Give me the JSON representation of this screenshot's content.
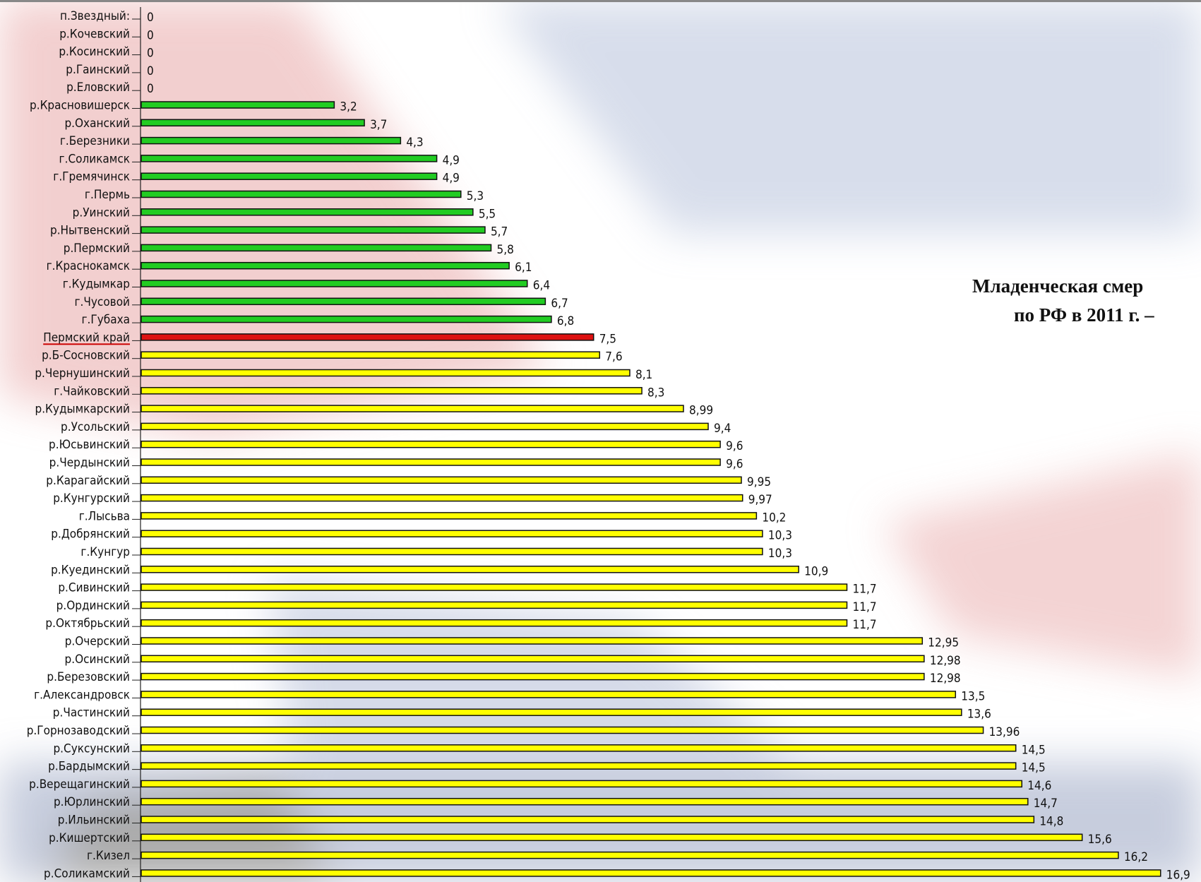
{
  "chart_data": {
    "type": "barh",
    "annotations": [
      "Младенческая смер",
      "по РФ в 2011 г. –"
    ],
    "categories": [
      "п.Звездный:",
      "р.Кочевский",
      "р.Косинский",
      "р.Гаинский",
      "р.Еловский",
      "р.Красновишерск",
      "р.Оханский",
      "г.Березники",
      "г.Соликамск",
      "г.Гремячинск",
      "г.Пермь",
      "р.Уинский",
      "р.Нытвенский",
      "р.Пермский",
      "г.Краснокамск",
      "г.Кудымкар",
      "г.Чусовой",
      "г.Губаха",
      "Пермский край",
      "р.Б-Сосновский",
      "р.Чернушинский",
      "г.Чайковский",
      "р.Кудымкарский",
      "р.Усольский",
      "р.Юсьвинский",
      "р.Чердынский",
      "р.Карагайский",
      "р.Кунгурский",
      "г.Лысьва",
      "р.Добрянский",
      "г.Кунгур",
      "р.Куединский",
      "р.Сивинский",
      "р.Ординский",
      "р.Октябрьский",
      "р.Очерский",
      "р.Осинский",
      "р.Березовский",
      "г.Александровск",
      "р.Частинский",
      "р.Горнозаводский",
      "р.Суксунский",
      "р.Бардымский",
      "р.Верещагинский",
      "р.Юрлинский",
      "р.Ильинский",
      "р.Кишертский",
      "г.Кизел",
      "р.Соликамский"
    ],
    "values": [
      0,
      0,
      0,
      0,
      0,
      3.2,
      3.7,
      4.3,
      4.9,
      4.9,
      5.3,
      5.5,
      5.7,
      5.8,
      6.1,
      6.4,
      6.7,
      6.8,
      7.5,
      7.6,
      8.1,
      8.3,
      8.99,
      9.4,
      9.6,
      9.6,
      9.95,
      9.97,
      10.2,
      10.3,
      10.3,
      10.9,
      11.7,
      11.7,
      11.7,
      12.95,
      12.98,
      12.98,
      13.5,
      13.6,
      13.96,
      14.5,
      14.5,
      14.6,
      14.7,
      14.8,
      15.6,
      16.2,
      16.9
    ],
    "value_labels": [
      "0",
      "0",
      "0",
      "0",
      "0",
      "3,2",
      "3,7",
      "4,3",
      "4,9",
      "4,9",
      "5,3",
      "5,5",
      "5,7",
      "5,8",
      "6,1",
      "6,4",
      "6,7",
      "6,8",
      "7,5",
      "7,6",
      "8,1",
      "8,3",
      "8,99",
      "9,4",
      "9,6",
      "9,6",
      "9,95",
      "9,97",
      "10,2",
      "10,3",
      "10,3",
      "10,9",
      "11,7",
      "11,7",
      "11,7",
      "12,95",
      "12,98",
      "12,98",
      "13,5",
      "13,6",
      "13,96",
      "14,5",
      "14,5",
      "14,6",
      "14,7",
      "14,8",
      "15,6",
      "16,2",
      "16,9"
    ],
    "colors": [
      "#22cc22",
      "#22cc22",
      "#22cc22",
      "#22cc22",
      "#22cc22",
      "#22cc22",
      "#22cc22",
      "#22cc22",
      "#22cc22",
      "#22cc22",
      "#22cc22",
      "#22cc22",
      "#22cc22",
      "#22cc22",
      "#22cc22",
      "#22cc22",
      "#22cc22",
      "#22cc22",
      "#dd1111",
      "#ffff00",
      "#ffff00",
      "#ffff00",
      "#ffff00",
      "#ffff00",
      "#ffff00",
      "#ffff00",
      "#ffff00",
      "#ffff00",
      "#ffff00",
      "#ffff00",
      "#ffff00",
      "#ffff00",
      "#ffff00",
      "#ffff00",
      "#ffff00",
      "#ffff00",
      "#ffff00",
      "#ffff00",
      "#ffff00",
      "#ffff00",
      "#ffff00",
      "#ffff00",
      "#ffff00",
      "#ffff00",
      "#ffff00",
      "#ffff00",
      "#ffff00",
      "#ffff00",
      "#ffff00"
    ],
    "xlim": [
      0,
      17.5
    ]
  }
}
